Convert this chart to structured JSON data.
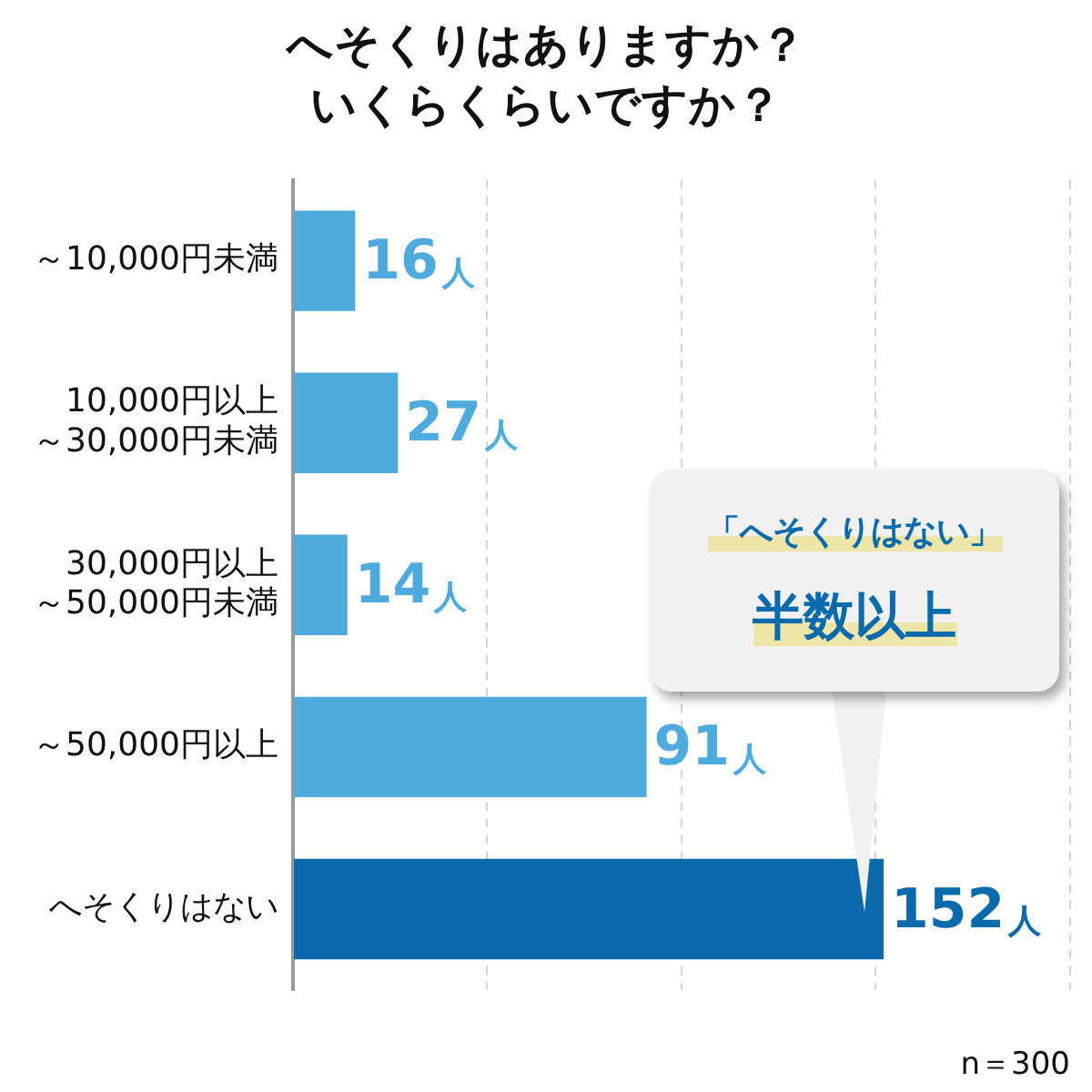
{
  "chart_data": {
    "type": "bar",
    "orientation": "horizontal",
    "title": "へそくりはありますか？いくらくらいですか？",
    "categories": [
      "～10,000円未満",
      "10,000円以上～30,000円未満",
      "30,000円以上～50,000円未満",
      "～50,000円以上",
      "へそくりはない"
    ],
    "values": [
      16,
      27,
      14,
      91,
      152
    ],
    "value_labels": [
      "16人",
      "27人",
      "14人",
      "91人",
      "152人"
    ],
    "colors": [
      "#4faadd",
      "#4faadd",
      "#4faadd",
      "#4faadd",
      "#0a6aab"
    ],
    "xlim": [
      0,
      200
    ],
    "xticks": [
      {
        "value": 0,
        "label": null
      },
      {
        "value": 50,
        "label": null
      },
      {
        "value": 100,
        "label": null
      },
      {
        "value": 150,
        "label": null
      },
      {
        "value": 200,
        "label": null
      }
    ],
    "grid": "x",
    "tick_labels": "y",
    "legend": false,
    "annotations": [
      "「へそくりはない」",
      "半数以上",
      "n＝300"
    ]
  }
}
